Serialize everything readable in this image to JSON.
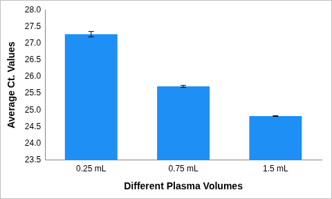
{
  "chart_data": {
    "type": "bar",
    "x_label": "Different Plasma Volumes",
    "y_label": "Average Ct. Values",
    "categories": [
      "0.25 mL",
      "0.75 mL",
      "1.5 mL"
    ],
    "values": [
      27.27,
      25.71,
      24.82
    ],
    "errors": [
      0.08,
      0.03,
      0.01
    ],
    "color": "#1e8ff5",
    "ylim": [
      23.5,
      28.0
    ],
    "yticks": [
      23.5,
      {
        "value": 24,
        "label": "24.0"
      },
      24.5,
      {
        "value": 25,
        "label": "25.0"
      },
      25.5,
      {
        "value": 26,
        "label": "26.0"
      },
      26.5,
      {
        "value": 27,
        "label": "27.0"
      },
      27.5,
      {
        "value": 28,
        "label": "28.0"
      }
    ],
    "grid": false,
    "data_labels": true
  }
}
